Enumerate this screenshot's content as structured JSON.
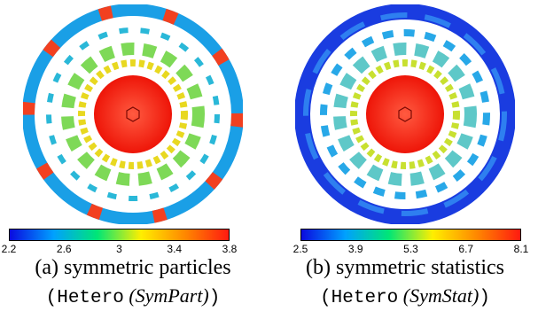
{
  "figure_a": {
    "caption_line1": "(a) symmetric particles",
    "caption_open": "(",
    "caption_code": "Hetero",
    "caption_term": "(SymPart)",
    "caption_close": ")",
    "colorbar_ticks": [
      "2.2",
      "2.6",
      "3",
      "3.4",
      "3.8"
    ],
    "colors": {
      "ring": "#1aa0e6",
      "ring_hot": "#f23b20",
      "core": "#ff1a10"
    }
  },
  "figure_b": {
    "caption_line1": "(b) symmetric statistics",
    "caption_open": "(",
    "caption_code": "Hetero",
    "caption_term": "(SymStat)",
    "caption_close": ")",
    "colorbar_ticks": [
      "2.5",
      "3.9",
      "5.3",
      "6.7",
      "8.1"
    ],
    "colors": {
      "ring": "#1a3de0",
      "ring_hot": "#2c7ef0",
      "core": "#ff1a10"
    }
  },
  "colorbar_colors": [
    "#0a0adf",
    "#00a0ff",
    "#00e676",
    "#ffee00",
    "#ff8800",
    "#ff1a10"
  ]
}
